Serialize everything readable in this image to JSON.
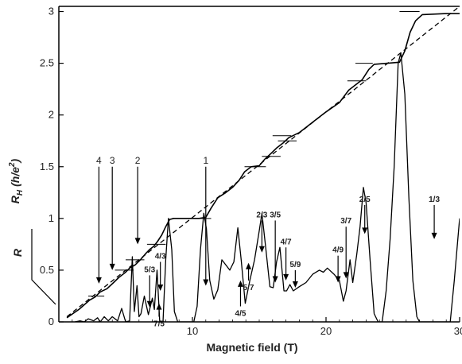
{
  "chart_data": {
    "type": "line",
    "xlabel": "Magnetic field (T)",
    "ylabel_hall_main": "R",
    "ylabel_hall_sub": "H",
    "ylabel_hall_unit": "(h/e",
    "ylabel_hall_exp": "2",
    "ylabel_hall_close": ")",
    "ylabel_long": "R",
    "xlim": [
      0,
      30
    ],
    "ylim": [
      0,
      3.05
    ],
    "x_ticks": [
      "10",
      "20",
      "30"
    ],
    "y_ticks": [
      "0",
      "0.5",
      "1",
      "1.5",
      "2",
      "2.5",
      "3"
    ],
    "grid": false,
    "series": [
      {
        "kind": "hall",
        "color": "#000000",
        "points": [
          [
            0.6,
            0.04
          ],
          [
            1.5,
            0.12
          ],
          [
            2.3,
            0.21
          ],
          [
            2.7,
            0.24
          ],
          [
            3.1,
            0.29
          ],
          [
            3.6,
            0.32
          ],
          [
            4.1,
            0.38
          ],
          [
            4.5,
            0.43
          ],
          [
            5.0,
            0.48
          ],
          [
            5.3,
            0.52
          ],
          [
            5.7,
            0.55
          ],
          [
            6.1,
            0.6
          ],
          [
            6.5,
            0.66
          ],
          [
            6.8,
            0.7
          ],
          [
            7.1,
            0.73
          ],
          [
            7.4,
            0.78
          ],
          [
            7.7,
            0.84
          ],
          [
            8.0,
            0.92
          ],
          [
            8.3,
            0.99
          ],
          [
            8.6,
            1.0
          ],
          [
            9.5,
            1.0
          ],
          [
            10.5,
            1.0
          ],
          [
            11.0,
            1.01
          ],
          [
            11.4,
            1.1
          ],
          [
            11.9,
            1.2
          ],
          [
            12.5,
            1.25
          ],
          [
            13.0,
            1.3
          ],
          [
            13.5,
            1.37
          ],
          [
            13.9,
            1.45
          ],
          [
            14.4,
            1.5
          ],
          [
            15.0,
            1.51
          ],
          [
            15.4,
            1.57
          ],
          [
            15.9,
            1.63
          ],
          [
            16.3,
            1.68
          ],
          [
            16.8,
            1.73
          ],
          [
            17.2,
            1.78
          ],
          [
            18.0,
            1.83
          ],
          [
            19.0,
            1.93
          ],
          [
            20.0,
            2.03
          ],
          [
            21.0,
            2.12
          ],
          [
            21.7,
            2.24
          ],
          [
            22.3,
            2.3
          ],
          [
            22.7,
            2.34
          ],
          [
            23.2,
            2.44
          ],
          [
            23.6,
            2.49
          ],
          [
            24.6,
            2.5
          ],
          [
            25.5,
            2.51
          ],
          [
            25.9,
            2.62
          ],
          [
            26.3,
            2.8
          ],
          [
            26.7,
            2.91
          ],
          [
            27.2,
            2.97
          ],
          [
            29.0,
            2.98
          ],
          [
            30.0,
            2.98
          ]
        ]
      },
      {
        "kind": "classical",
        "color": "#000000",
        "dashed": true,
        "points": [
          [
            0.6,
            0.05
          ],
          [
            30.0,
            3.05
          ]
        ]
      },
      {
        "kind": "longitudinal",
        "color": "#000000",
        "points": [
          [
            1.2,
            0.0
          ],
          [
            1.6,
            0.01
          ],
          [
            1.9,
            0.0
          ],
          [
            2.2,
            0.03
          ],
          [
            2.6,
            0.01
          ],
          [
            2.9,
            0.04
          ],
          [
            3.1,
            0.0
          ],
          [
            3.4,
            0.05
          ],
          [
            3.7,
            0.01
          ],
          [
            4.0,
            0.05
          ],
          [
            4.4,
            0.01
          ],
          [
            4.7,
            0.13
          ],
          [
            5.0,
            0.0
          ],
          [
            5.3,
            0.01
          ],
          [
            5.5,
            0.63
          ],
          [
            5.65,
            0.1
          ],
          [
            5.85,
            0.35
          ],
          [
            6.0,
            0.05
          ],
          [
            6.15,
            0.08
          ],
          [
            6.4,
            0.25
          ],
          [
            6.7,
            0.07
          ],
          [
            7.0,
            0.23
          ],
          [
            7.15,
            0.12
          ],
          [
            7.35,
            0.5
          ],
          [
            7.55,
            0.01
          ],
          [
            7.8,
            0.0
          ],
          [
            8.0,
            0.6
          ],
          [
            8.2,
            1.0
          ],
          [
            8.45,
            0.7
          ],
          [
            8.65,
            0.1
          ],
          [
            8.9,
            0.0
          ],
          [
            10.1,
            0.0
          ],
          [
            10.35,
            0.15
          ],
          [
            10.6,
            0.7
          ],
          [
            10.85,
            1.05
          ],
          [
            11.05,
            0.9
          ],
          [
            11.3,
            0.4
          ],
          [
            11.6,
            0.22
          ],
          [
            11.9,
            0.31
          ],
          [
            12.2,
            0.6
          ],
          [
            12.5,
            0.55
          ],
          [
            12.8,
            0.5
          ],
          [
            13.1,
            0.58
          ],
          [
            13.4,
            0.91
          ],
          [
            13.65,
            0.6
          ],
          [
            13.95,
            0.18
          ],
          [
            14.3,
            0.4
          ],
          [
            14.65,
            0.6
          ],
          [
            15.0,
            0.88
          ],
          [
            15.2,
            1.05
          ],
          [
            15.5,
            0.7
          ],
          [
            15.8,
            0.34
          ],
          [
            16.05,
            0.33
          ],
          [
            16.3,
            0.58
          ],
          [
            16.55,
            0.72
          ],
          [
            16.85,
            0.3
          ],
          [
            17.05,
            0.3
          ],
          [
            17.3,
            0.36
          ],
          [
            17.55,
            0.3
          ],
          [
            18.0,
            0.34
          ],
          [
            18.5,
            0.38
          ],
          [
            19.0,
            0.46
          ],
          [
            19.5,
            0.5
          ],
          [
            19.8,
            0.48
          ],
          [
            20.1,
            0.52
          ],
          [
            20.6,
            0.46
          ],
          [
            21.0,
            0.4
          ],
          [
            21.3,
            0.2
          ],
          [
            21.5,
            0.3
          ],
          [
            21.8,
            0.6
          ],
          [
            22.0,
            0.38
          ],
          [
            22.3,
            0.65
          ],
          [
            22.55,
            0.92
          ],
          [
            22.8,
            1.3
          ],
          [
            23.0,
            1.15
          ],
          [
            23.3,
            0.6
          ],
          [
            23.6,
            0.08
          ],
          [
            23.9,
            0.0
          ],
          [
            24.2,
            0.0
          ],
          [
            24.5,
            0.3
          ],
          [
            24.8,
            0.8
          ],
          [
            25.1,
            1.5
          ],
          [
            25.4,
            2.5
          ],
          [
            25.6,
            2.6
          ],
          [
            25.9,
            2.2
          ],
          [
            26.2,
            1.2
          ],
          [
            26.5,
            0.4
          ],
          [
            26.8,
            0.05
          ],
          [
            27.0,
            0.0
          ],
          [
            29.3,
            0.0
          ],
          [
            29.6,
            0.4
          ],
          [
            30.0,
            1.0
          ]
        ]
      }
    ],
    "plateaus": [
      {
        "x": [
          2.2,
          3.4
        ],
        "y": 0.25
      },
      {
        "x": [
          4.2,
          5.6
        ],
        "y": 0.5
      },
      {
        "x": [
          5.0,
          6.4
        ],
        "y": 0.6
      },
      {
        "x": [
          6.6,
          8.0
        ],
        "y": 0.75
      },
      {
        "x": [
          8.5,
          11.4
        ],
        "y": 1.0
      },
      {
        "x": [
          13.9,
          15.5
        ],
        "y": 1.5
      },
      {
        "x": [
          15.2,
          16.6
        ],
        "y": 1.6
      },
      {
        "x": [
          16.4,
          17.8
        ],
        "y": 1.75
      },
      {
        "x": [
          16.0,
          17.4
        ],
        "y": 1.8
      },
      {
        "x": [
          21.6,
          23.0
        ],
        "y": 2.33
      },
      {
        "x": [
          22.2,
          23.5
        ],
        "y": 2.5
      },
      {
        "x": [
          25.5,
          27.0
        ],
        "y": 3.0
      }
    ],
    "annotations": [
      {
        "label": "4",
        "style": "int",
        "x": 3.0,
        "y_from": 1.5,
        "y_to": 0.37
      },
      {
        "label": "3",
        "style": "int",
        "x": 4.0,
        "y_from": 1.5,
        "y_to": 0.5
      },
      {
        "label": "2",
        "style": "int",
        "x": 5.9,
        "y_from": 1.5,
        "y_to": 0.75
      },
      {
        "label": "1",
        "style": "int",
        "x": 11.0,
        "y_from": 1.5,
        "y_to": 0.35
      },
      {
        "label": "5/3",
        "style": "frac",
        "x": 6.8,
        "y_from": 0.45,
        "y_to": 0.14,
        "dir": "down"
      },
      {
        "label": "4/3",
        "style": "frac",
        "x": 7.6,
        "y_from": 0.58,
        "y_to": 0.3,
        "dir": "down"
      },
      {
        "label": "7/5",
        "style": "frac",
        "x": 7.5,
        "y_from": 0.05,
        "y_to": 0.18,
        "dir": "up"
      },
      {
        "label": "2/3",
        "style": "frac",
        "x": 15.2,
        "y_from": 0.98,
        "y_to": 0.67,
        "dir": "down"
      },
      {
        "label": "3/5",
        "style": "frac",
        "x": 16.2,
        "y_from": 0.98,
        "y_to": 0.38,
        "dir": "down"
      },
      {
        "label": "4/7",
        "style": "frac",
        "x": 17.0,
        "y_from": 0.72,
        "y_to": 0.4,
        "dir": "down"
      },
      {
        "label": "5/9",
        "style": "frac",
        "x": 17.7,
        "y_from": 0.5,
        "y_to": 0.33,
        "dir": "down"
      },
      {
        "label": "4/5",
        "style": "frac",
        "x": 13.6,
        "y_from": 0.15,
        "y_to": 0.4,
        "dir": "up"
      },
      {
        "label": "5/7",
        "style": "frac",
        "x": 14.2,
        "y_from": 0.4,
        "y_to": 0.57,
        "dir": "up"
      },
      {
        "label": "4/9",
        "style": "frac",
        "x": 20.9,
        "y_from": 0.64,
        "y_to": 0.38,
        "dir": "down"
      },
      {
        "label": "3/7",
        "style": "frac",
        "x": 21.5,
        "y_from": 0.92,
        "y_to": 0.42,
        "dir": "down"
      },
      {
        "label": "2/5",
        "style": "frac",
        "x": 22.9,
        "y_from": 1.13,
        "y_to": 0.85,
        "dir": "down"
      },
      {
        "label": "1/3",
        "style": "frac",
        "x": 28.1,
        "y_from": 1.13,
        "y_to": 0.8,
        "dir": "down"
      }
    ]
  }
}
